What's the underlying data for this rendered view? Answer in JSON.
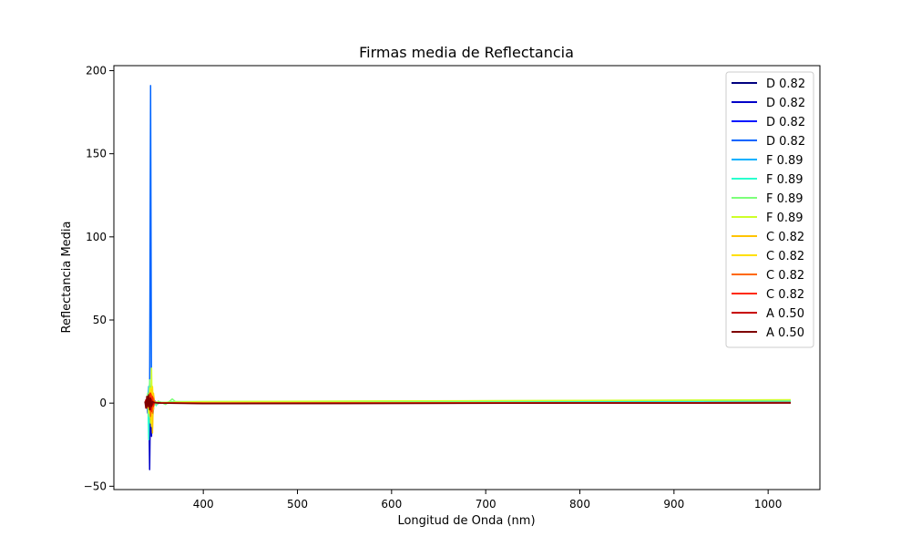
{
  "chart_data": {
    "type": "line",
    "title": "Firmas media de Reflectancia",
    "xlabel": "Longitud de Onda (nm)",
    "ylabel": "Reflectancia Media",
    "xlim": [
      305,
      1055
    ],
    "ylim": [
      -52,
      203
    ],
    "x_ticks": [
      400,
      500,
      600,
      700,
      800,
      900,
      1000
    ],
    "y_ticks": [
      -50,
      0,
      50,
      100,
      150,
      200
    ],
    "legend_position": "top-right",
    "grid": false,
    "series": [
      {
        "name": "D 0.82",
        "color": "#00007f",
        "x": [
          340,
          341,
          342,
          343,
          344,
          345,
          346,
          348,
          350,
          355,
          370,
          400,
          600,
          800,
          1024
        ],
        "y": [
          -3,
          4,
          -5,
          12,
          -3,
          2,
          0.5,
          1.2,
          0.5,
          0.3,
          0.1,
          0.0,
          0.1,
          0.2,
          0.3
        ]
      },
      {
        "name": "D 0.82",
        "color": "#0000c8",
        "x": [
          340,
          341,
          342,
          343,
          344,
          345,
          346,
          348,
          350,
          355,
          370,
          400,
          600,
          800,
          1024
        ],
        "y": [
          1,
          -6,
          8,
          -40,
          10,
          -20,
          3,
          0.8,
          -0.6,
          0.4,
          0.1,
          0.0,
          0.1,
          0.2,
          0.3
        ]
      },
      {
        "name": "D 0.82",
        "color": "#0018ff",
        "x": [
          340,
          341,
          342,
          343,
          344,
          345,
          346,
          348,
          350,
          355,
          370,
          400,
          600,
          800,
          1024
        ],
        "y": [
          0,
          3,
          -4,
          6,
          -8,
          4,
          -9,
          1.5,
          0.4,
          0.2,
          0.1,
          0.0,
          0.1,
          0.2,
          0.3
        ]
      },
      {
        "name": "D 0.82",
        "color": "#0064ff",
        "x": [
          340,
          341,
          342,
          343,
          344,
          345,
          346,
          347,
          348,
          350,
          355,
          370,
          400,
          600,
          800,
          1024
        ],
        "y": [
          0,
          2,
          -3,
          4,
          191,
          -5,
          2,
          -1,
          0.8,
          0.3,
          0.2,
          0.1,
          0.0,
          0.1,
          0.2,
          0.3
        ]
      },
      {
        "name": "F 0.89",
        "color": "#00b0ff",
        "x": [
          340,
          341,
          342,
          343,
          344,
          345,
          346,
          348,
          350,
          355,
          370,
          400,
          600,
          800,
          1024
        ],
        "y": [
          2,
          -4,
          10,
          -6,
          5,
          -3,
          1,
          0.4,
          0.2,
          0.1,
          0.2,
          0.5,
          0.8,
          1.0,
          1.2
        ]
      },
      {
        "name": "F 0.89",
        "color": "#29ffce",
        "x": [
          340,
          341,
          342,
          343,
          344,
          345,
          346,
          348,
          350,
          352,
          355,
          360,
          365,
          370,
          400,
          600,
          800,
          1024
        ],
        "y": [
          1,
          5,
          -22,
          8,
          -10,
          6,
          -2,
          0.5,
          -1.5,
          1.0,
          0.6,
          0.3,
          0.9,
          0.7,
          0.8,
          1.0,
          1.2,
          1.4
        ]
      },
      {
        "name": "F 0.89",
        "color": "#7dff7a",
        "x": [
          340,
          341,
          342,
          343,
          344,
          345,
          346,
          348,
          350,
          352,
          355,
          360,
          365,
          367,
          370,
          400,
          600,
          800,
          1024
        ],
        "y": [
          0,
          6,
          -8,
          14,
          -6,
          4,
          -1,
          0.8,
          -1.0,
          1.2,
          0.5,
          -0.8,
          1.5,
          2.5,
          1.0,
          0.9,
          1.2,
          1.5,
          1.8
        ]
      },
      {
        "name": "F 0.89",
        "color": "#ceff29",
        "x": [
          340,
          341,
          342,
          343,
          344,
          345,
          346,
          347,
          348,
          350,
          355,
          370,
          400,
          600,
          800,
          1024
        ],
        "y": [
          0,
          3,
          -6,
          9,
          -12,
          21,
          -15,
          4,
          1,
          0.5,
          0.4,
          0.6,
          0.9,
          1.3,
          1.6,
          2.0
        ]
      },
      {
        "name": "C 0.82",
        "color": "#ffc400",
        "x": [
          340,
          341,
          342,
          343,
          344,
          345,
          346,
          347,
          348,
          350,
          355,
          370,
          400,
          600,
          800,
          1024
        ],
        "y": [
          0,
          2,
          -3,
          5,
          -10,
          8,
          -18,
          6,
          1,
          0.5,
          0.2,
          0.1,
          0.0,
          0.1,
          0.2,
          0.3
        ]
      },
      {
        "name": "C 0.82",
        "color": "#ffe000",
        "x": [
          340,
          341,
          342,
          343,
          344,
          345,
          346,
          347,
          348,
          350,
          355,
          370,
          400,
          600,
          800,
          1024
        ],
        "y": [
          1,
          -2,
          4,
          -6,
          9,
          -14,
          10,
          -4,
          1,
          0.3,
          0.2,
          0.1,
          0.0,
          0.1,
          0.2,
          0.3
        ]
      },
      {
        "name": "C 0.82",
        "color": "#ff6800",
        "x": [
          340,
          341,
          342,
          343,
          344,
          345,
          346,
          347,
          348,
          350,
          355,
          370,
          400,
          600,
          800,
          1024
        ],
        "y": [
          0,
          3,
          -2,
          6,
          -8,
          5,
          -6,
          3,
          0.5,
          0.3,
          0.2,
          0.1,
          0.0,
          0.1,
          0.2,
          0.3
        ]
      },
      {
        "name": "C 0.82",
        "color": "#ff2900",
        "x": [
          340,
          341,
          342,
          343,
          344,
          345,
          346,
          347,
          348,
          350,
          355,
          370,
          400,
          600,
          800,
          1024
        ],
        "y": [
          0,
          -2,
          3,
          -4,
          6,
          -5,
          4,
          -2,
          0.5,
          0.2,
          0.1,
          0.1,
          0.0,
          0.1,
          0.2,
          0.3
        ]
      },
      {
        "name": "A 0.50",
        "color": "#c80000",
        "x": [
          338,
          339,
          340,
          341,
          342,
          343,
          344,
          345,
          346,
          348,
          350,
          355,
          370,
          400,
          600,
          800,
          1024
        ],
        "y": [
          0,
          2,
          -3,
          4,
          -2,
          3,
          -4,
          2,
          -1,
          0.5,
          0.2,
          0.1,
          0.0,
          -0.2,
          -0.1,
          0.0,
          0.1
        ]
      },
      {
        "name": "A 0.50",
        "color": "#7f0000",
        "x": [
          338,
          339,
          340,
          341,
          342,
          343,
          344,
          345,
          346,
          348,
          350,
          355,
          370,
          400,
          600,
          800,
          1024
        ],
        "y": [
          1,
          -3,
          4,
          -2,
          5,
          -4,
          3,
          -2,
          1,
          0.3,
          0.1,
          0.0,
          -0.1,
          -0.3,
          -0.2,
          0.0,
          0.1
        ]
      }
    ]
  }
}
